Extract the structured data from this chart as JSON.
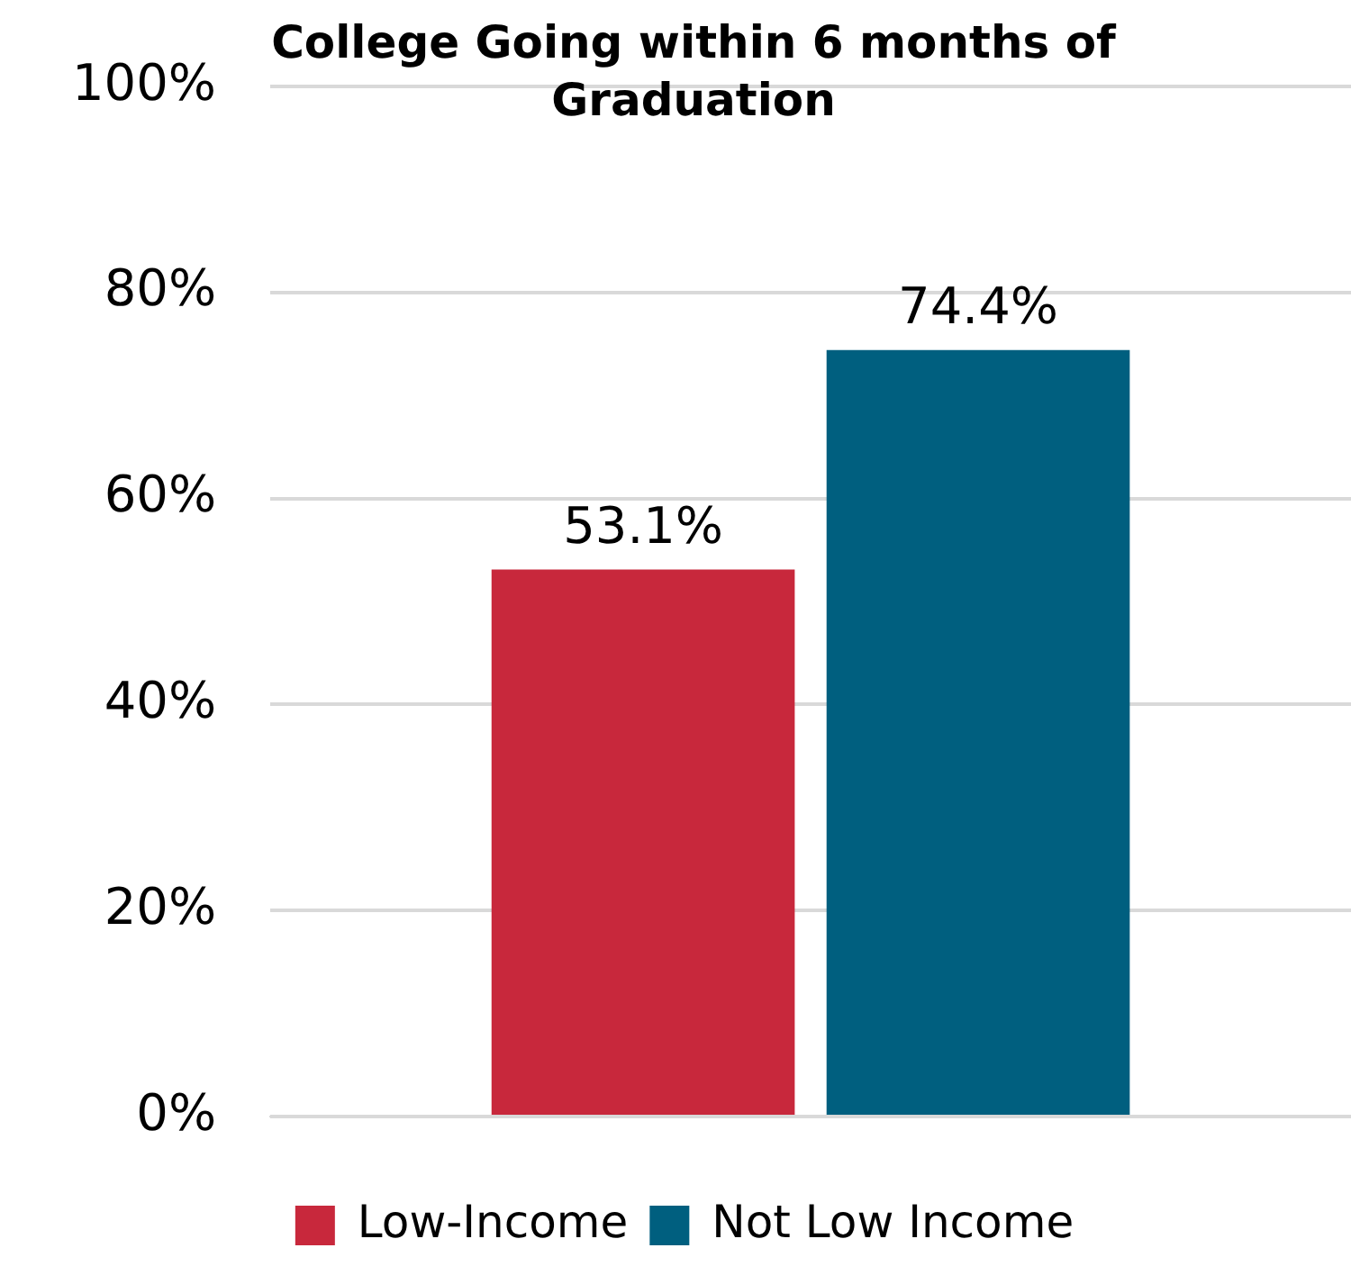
{
  "chart_data": {
    "type": "bar",
    "title": "College Going within 6 months of Graduation",
    "categories": [
      null
    ],
    "series": [
      {
        "name": "Low-Income",
        "color": "#c8283c",
        "values": [
          53.1
        ],
        "value_labels": [
          "53.1%"
        ]
      },
      {
        "name": "Not Low Income",
        "color": "#005f7f",
        "values": [
          74.4
        ],
        "value_labels": [
          "74.4%"
        ]
      }
    ],
    "ylim": [
      0,
      100
    ],
    "yticks": [
      {
        "value": 0,
        "label": "0%"
      },
      {
        "value": 20,
        "label": "20%"
      },
      {
        "value": 40,
        "label": "40%"
      },
      {
        "value": 60,
        "label": "60%"
      },
      {
        "value": 80,
        "label": "80%"
      },
      {
        "value": 100,
        "label": "100%"
      }
    ],
    "grid": "y",
    "legend": "bottom"
  }
}
